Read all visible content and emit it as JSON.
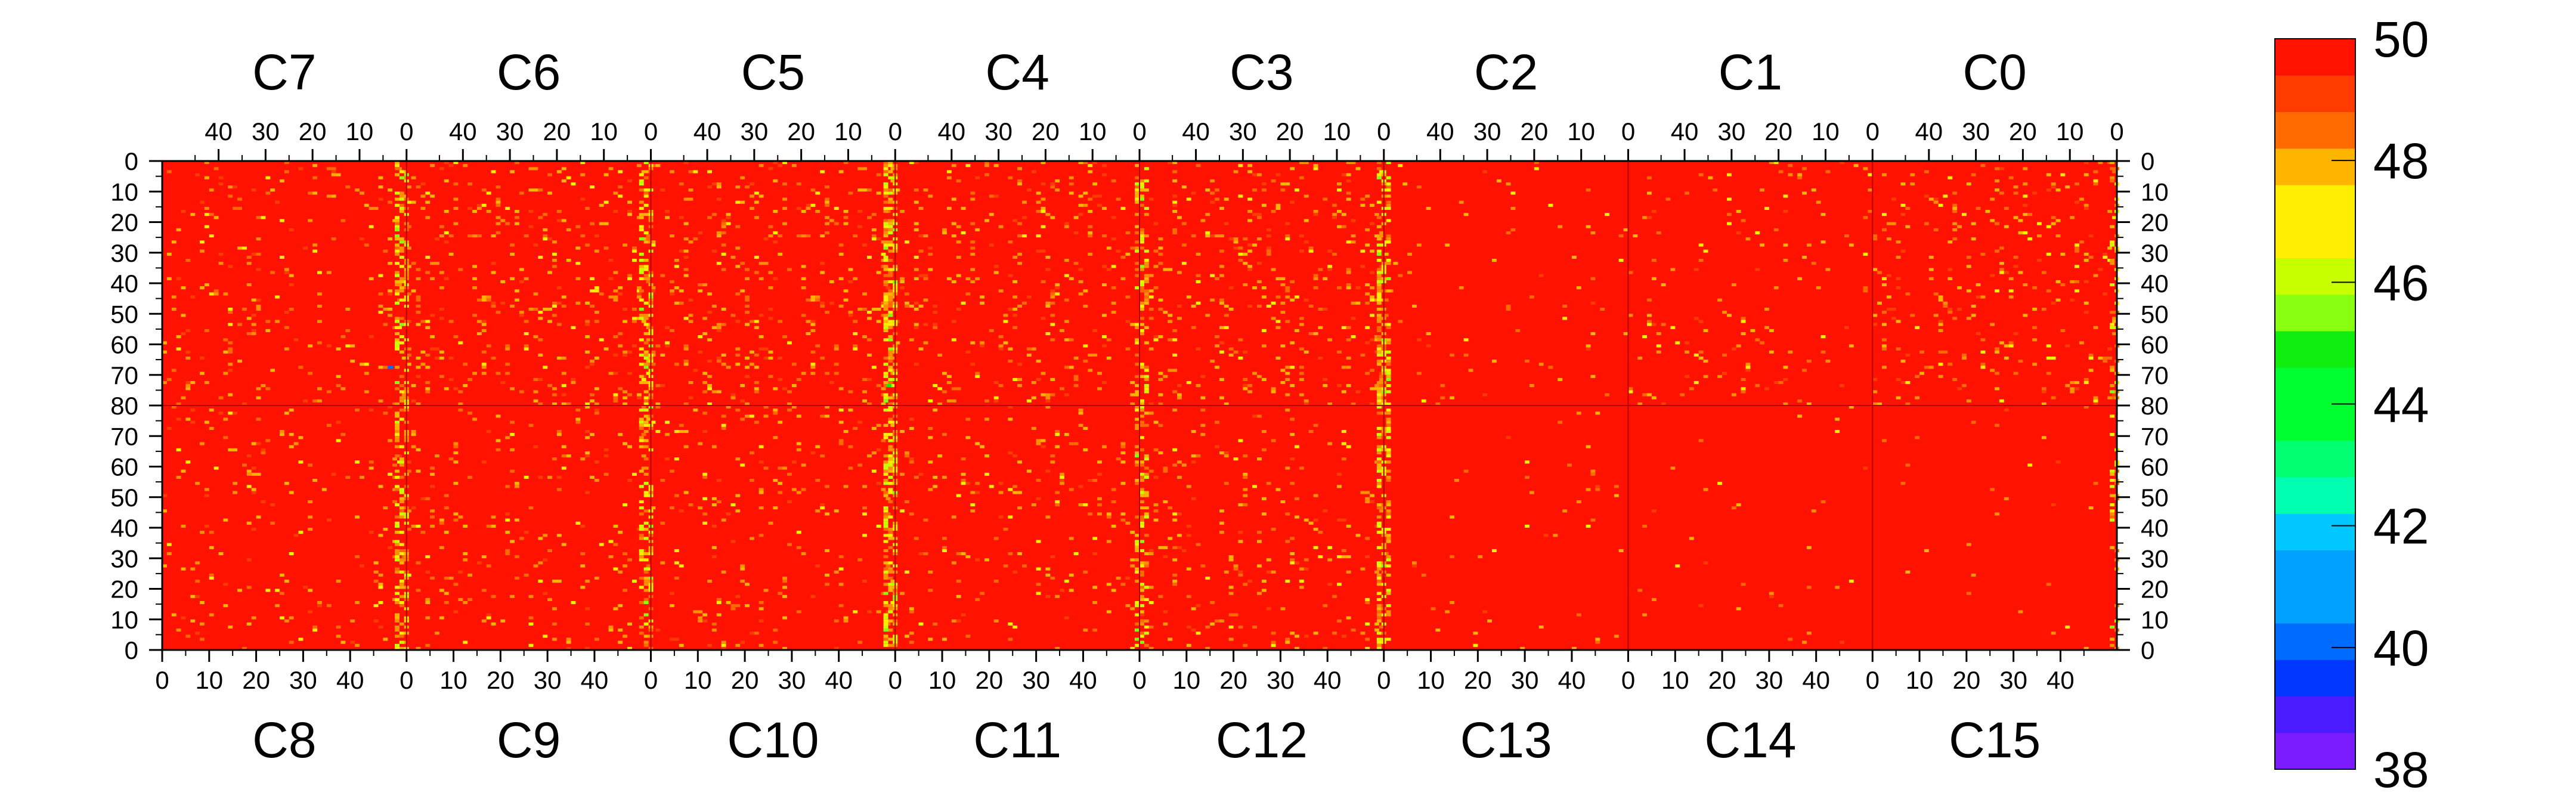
{
  "chart_data": {
    "type": "heatmap",
    "title": "",
    "top_chips": [
      "C7",
      "C6",
      "C5",
      "C4",
      "C3",
      "C2",
      "C1",
      "C0"
    ],
    "bottom_chips": [
      "C8",
      "C9",
      "C10",
      "C11",
      "C12",
      "C13",
      "C14",
      "C15"
    ],
    "columns_per_chip": 52,
    "rows_per_half": 80,
    "top_x_ticks": [
      "40",
      "30",
      "20",
      "10",
      "0"
    ],
    "bottom_x_ticks": [
      "0",
      "10",
      "20",
      "30",
      "40"
    ],
    "top_x_tick_values": [
      40,
      30,
      20,
      10,
      0
    ],
    "bottom_x_tick_values": [
      0,
      10,
      20,
      30,
      40
    ],
    "y_tick_labels": [
      "0",
      "10",
      "20",
      "30",
      "40",
      "50",
      "60",
      "70",
      "80",
      "70",
      "60",
      "50",
      "40",
      "30",
      "20",
      "10",
      "0"
    ],
    "colorbar": {
      "min": 38,
      "max": 50,
      "levels": 20,
      "tick_labels": [
        "50",
        "48",
        "46",
        "44",
        "42",
        "40",
        "38"
      ],
      "tick_values": [
        50,
        48,
        46,
        44,
        42,
        40,
        38
      ],
      "colors": [
        "#7a1cff",
        "#4a1cff",
        "#1a1cff",
        "#0038ff",
        "#006cff",
        "#00a0ff",
        "#00c8ff",
        "#00ffe8",
        "#00ffb0",
        "#00ff70",
        "#00ff30",
        "#10ee10",
        "#40ff10",
        "#88ff10",
        "#c8ff00",
        "#ffee00",
        "#ffb400",
        "#ff9000",
        "#ff6a00",
        "#ff3c00",
        "#ff1200"
      ]
    },
    "background_value": 50,
    "hot_columns_note_values": {
      "edge_column_value_range": [
        44,
        49
      ],
      "scattered_value_range": [
        47,
        49.5
      ]
    }
  }
}
